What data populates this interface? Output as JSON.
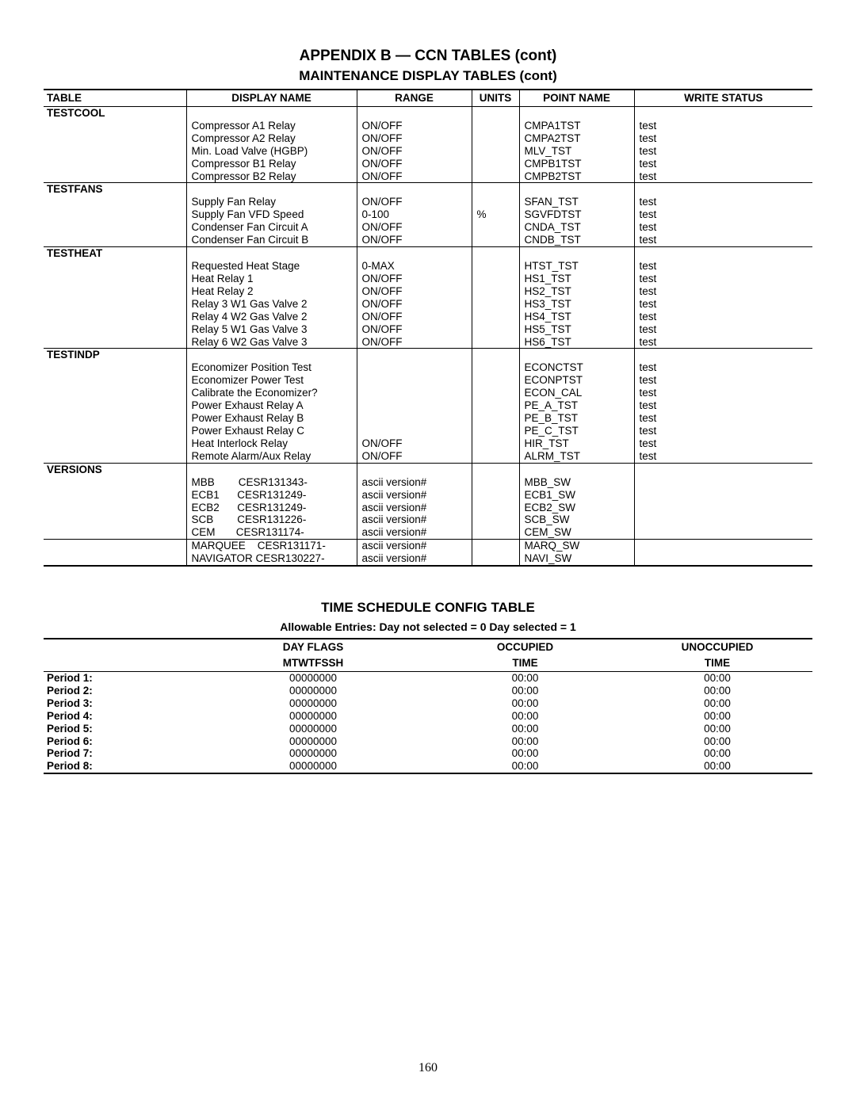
{
  "appendix_title": "APPENDIX B — CCN TABLES (cont)",
  "section_title": "MAINTENANCE DISPLAY TABLES (cont)",
  "page_number": "160",
  "main_table": {
    "columns": [
      "TABLE",
      "DISPLAY NAME",
      "RANGE",
      "UNITS",
      "POINT NAME",
      "WRITE STATUS"
    ],
    "col_widths": [
      "180px",
      "215px",
      "145px",
      "60px",
      "145px",
      "auto"
    ],
    "groups": [
      {
        "name": "TESTCOOL",
        "rows": [
          {
            "display": "Compressor A1 Relay",
            "range": "ON/OFF",
            "units": "",
            "point": "CMPA1TST",
            "write": "test"
          },
          {
            "display": "Compressor A2 Relay",
            "range": "ON/OFF",
            "units": "",
            "point": "CMPA2TST",
            "write": "test"
          },
          {
            "display": "Min. Load Valve (HGBP)",
            "range": "ON/OFF",
            "units": "",
            "point": "MLV_TST",
            "write": "test"
          },
          {
            "display": "Compressor B1 Relay",
            "range": "ON/OFF",
            "units": "",
            "point": "CMPB1TST",
            "write": "test"
          },
          {
            "display": "Compressor B2 Relay",
            "range": "ON/OFF",
            "units": "",
            "point": "CMPB2TST",
            "write": "test"
          }
        ]
      },
      {
        "name": "TESTFANS",
        "rows": [
          {
            "display": "Supply Fan Relay",
            "range": "ON/OFF",
            "units": "",
            "point": "SFAN_TST",
            "write": "test"
          },
          {
            "display": "Supply Fan VFD Speed",
            "range": "0-100",
            "units": "%",
            "point": "SGVFDTST",
            "write": "test"
          },
          {
            "display": "Condenser Fan Circuit A",
            "range": "ON/OFF",
            "units": "",
            "point": "CNDA_TST",
            "write": "test"
          },
          {
            "display": "Condenser Fan Circuit B",
            "range": "ON/OFF",
            "units": "",
            "point": "CNDB_TST",
            "write": "test"
          }
        ]
      },
      {
        "name": "TESTHEAT",
        "rows": [
          {
            "display": "Requested Heat Stage",
            "range": "0-MAX",
            "units": "",
            "point": "HTST_TST",
            "write": "test"
          },
          {
            "display": "Heat Relay 1",
            "range": "ON/OFF",
            "units": "",
            "point": "HS1_TST",
            "write": "test"
          },
          {
            "display": "Heat Relay 2",
            "range": "ON/OFF",
            "units": "",
            "point": "HS2_TST",
            "write": "test"
          },
          {
            "display": "Relay 3 W1 Gas Valve 2",
            "range": "ON/OFF",
            "units": "",
            "point": "HS3_TST",
            "write": "test"
          },
          {
            "display": "Relay 4 W2 Gas Valve 2",
            "range": "ON/OFF",
            "units": "",
            "point": "HS4_TST",
            "write": "test"
          },
          {
            "display": "Relay 5 W1 Gas Valve 3",
            "range": "ON/OFF",
            "units": "",
            "point": "HS5_TST",
            "write": "test"
          },
          {
            "display": "Relay 6 W2 Gas Valve 3",
            "range": "ON/OFF",
            "units": "",
            "point": "HS6_TST",
            "write": "test"
          }
        ]
      },
      {
        "name": "TESTINDP",
        "rows": [
          {
            "display": "Economizer Position Test",
            "range": "",
            "units": "",
            "point": "ECONCTST",
            "write": "test"
          },
          {
            "display": "Economizer Power Test",
            "range": "",
            "units": "",
            "point": "ECONPTST",
            "write": "test"
          },
          {
            "display": "Calibrate the Economizer?",
            "range": "",
            "units": "",
            "point": "ECON_CAL",
            "write": "test"
          },
          {
            "display": "Power Exhaust Relay A",
            "range": "",
            "units": "",
            "point": "PE_A_TST",
            "write": "test"
          },
          {
            "display": "Power Exhaust Relay B",
            "range": "",
            "units": "",
            "point": "PE_B_TST",
            "write": "test"
          },
          {
            "display": "Power Exhaust Relay C",
            "range": "",
            "units": "",
            "point": "PE_C_TST",
            "write": "test"
          },
          {
            "display": "Heat Interlock Relay",
            "range": "ON/OFF",
            "units": "",
            "point": "HIR_TST",
            "write": "test"
          },
          {
            "display": "Remote Alarm/Aux Relay",
            "range": "ON/OFF",
            "units": "",
            "point": "ALRM_TST",
            "write": "test"
          }
        ]
      },
      {
        "name": "VERSIONS",
        "subgroups": [
          {
            "rows": [
              {
                "display": "MBB        CESR131343-",
                "range": "ascii version#",
                "units": "",
                "point": "MBB_SW",
                "write": ""
              },
              {
                "display": "ECB1      CESR131249-",
                "range": "ascii version#",
                "units": "",
                "point": "ECB1_SW",
                "write": ""
              },
              {
                "display": "ECB2      CESR131249-",
                "range": "ascii version#",
                "units": "",
                "point": "ECB2_SW",
                "write": ""
              },
              {
                "display": "SCB        CESR131226-",
                "range": "ascii version#",
                "units": "",
                "point": "SCB_SW",
                "write": ""
              },
              {
                "display": "CEM       CESR131174-",
                "range": "ascii version#",
                "units": "",
                "point": "CEM_SW",
                "write": ""
              }
            ]
          },
          {
            "rows": [
              {
                "display": "MARQUEE    CESR131171-",
                "range": "ascii version#",
                "units": "",
                "point": "MARQ_SW",
                "write": ""
              },
              {
                "display": "NAVIGATOR CESR130227-",
                "range": "ascii version#",
                "units": "",
                "point": "NAVI_SW",
                "write": ""
              }
            ]
          }
        ]
      }
    ]
  },
  "ts": {
    "title": "TIME SCHEDULE CONFIG TABLE",
    "subtitle": "Allowable Entries: Day not selected = 0 Day selected = 1",
    "columns": {
      "dayflags_l1": "DAY FLAGS",
      "dayflags_l2": "MTWTFSSH",
      "occ_l1": "OCCUPIED",
      "occ_l2": "TIME",
      "unocc_l1": "UNOCCUPIED",
      "unocc_l2": "TIME"
    },
    "periods": [
      {
        "label": "Period 1:",
        "dayflags": "00000000",
        "occ": "00:00",
        "unocc": "00:00"
      },
      {
        "label": "Period 2:",
        "dayflags": "00000000",
        "occ": "00:00",
        "unocc": "00:00"
      },
      {
        "label": "Period 3:",
        "dayflags": "00000000",
        "occ": "00:00",
        "unocc": "00:00"
      },
      {
        "label": "Period 4:",
        "dayflags": "00000000",
        "occ": "00:00",
        "unocc": "00:00"
      },
      {
        "label": "Period 5:",
        "dayflags": "00000000",
        "occ": "00:00",
        "unocc": "00:00"
      },
      {
        "label": "Period 6:",
        "dayflags": "00000000",
        "occ": "00:00",
        "unocc": "00:00"
      },
      {
        "label": "Period 7:",
        "dayflags": "00000000",
        "occ": "00:00",
        "unocc": "00:00"
      },
      {
        "label": "Period 8:",
        "dayflags": "00000000",
        "occ": "00:00",
        "unocc": "00:00"
      }
    ]
  }
}
